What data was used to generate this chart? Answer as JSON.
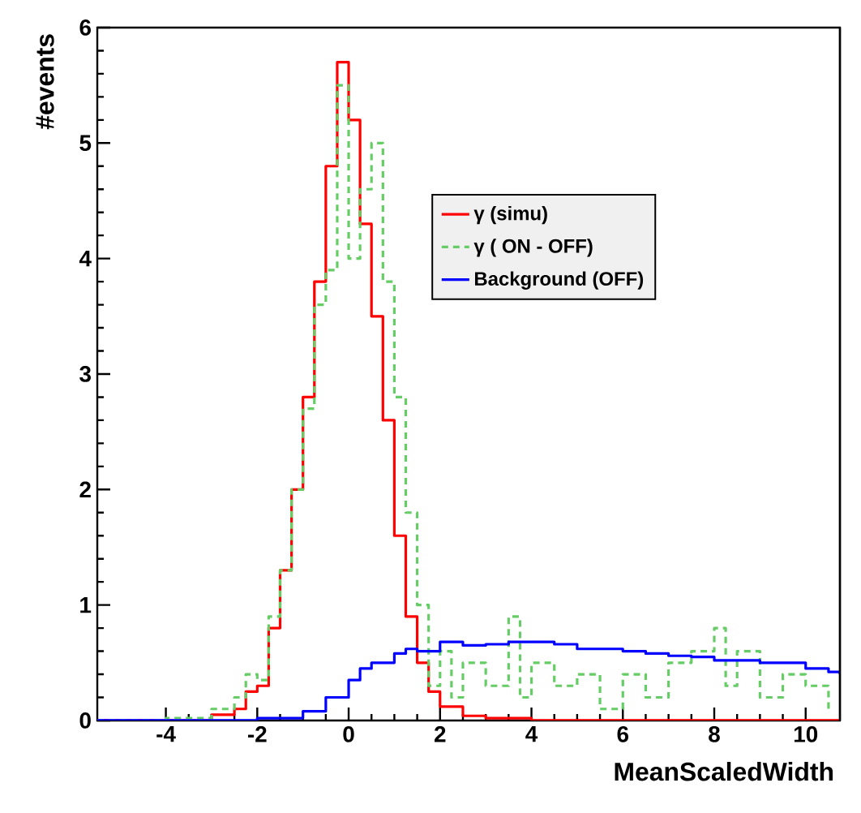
{
  "chart_data": {
    "type": "step",
    "xlabel": "MeanScaledWidth",
    "ylabel": "#events",
    "xlim": [
      -5.5,
      10.75
    ],
    "ylim": [
      0,
      6
    ],
    "xticks": [
      -4,
      -2,
      0,
      2,
      4,
      6,
      8,
      10
    ],
    "yticks": [
      0,
      1,
      2,
      3,
      4,
      5,
      6
    ],
    "grid": false,
    "legend": "right",
    "series": [
      {
        "name": "γ (simu)",
        "color": "#ff0000",
        "line_style": "solid",
        "x": [
          -5.5,
          -4,
          -3,
          -2.5,
          -2.25,
          -2,
          -1.75,
          -1.5,
          -1.25,
          -1,
          -0.75,
          -0.5,
          -0.25,
          0,
          0.25,
          0.5,
          0.75,
          1,
          1.25,
          1.5,
          1.75,
          2,
          2.5,
          3,
          4,
          10.75
        ],
        "values": [
          0,
          0,
          0.05,
          0.1,
          0.25,
          0.3,
          0.8,
          1.3,
          2.0,
          2.8,
          3.8,
          4.8,
          5.7,
          5.2,
          4.3,
          3.5,
          2.6,
          1.6,
          0.9,
          0.5,
          0.25,
          0.12,
          0.04,
          0.02,
          0,
          0
        ]
      },
      {
        "name": "γ ( ON - OFF)",
        "color": "#66cc66",
        "line_style": "dashed",
        "x": [
          -5.5,
          -4,
          -3,
          -2.5,
          -2.25,
          -2,
          -1.75,
          -1.5,
          -1.25,
          -1,
          -0.75,
          -0.5,
          -0.25,
          0,
          0.25,
          0.5,
          0.75,
          1,
          1.25,
          1.5,
          1.75,
          2,
          2.25,
          2.5,
          3,
          3.5,
          3.75,
          4,
          4.5,
          5,
          5.5,
          6,
          6.5,
          7,
          7.5,
          8,
          8.25,
          8.5,
          9,
          9.5,
          10,
          10.5
        ],
        "values": [
          0,
          0.02,
          0.1,
          0.2,
          0.4,
          0.35,
          0.9,
          1.3,
          2.0,
          2.7,
          3.6,
          3.9,
          5.5,
          4.0,
          4.6,
          5.0,
          3.8,
          2.8,
          1.8,
          1.0,
          0.3,
          0.6,
          0.2,
          0.5,
          0.3,
          0.9,
          0.2,
          0.5,
          0.3,
          0.4,
          0.1,
          0.4,
          0.2,
          0.5,
          0.6,
          0.8,
          0.3,
          0.6,
          0.2,
          0.4,
          0.3,
          0.1
        ]
      },
      {
        "name": "Background (OFF)",
        "color": "#0000ff",
        "line_style": "solid",
        "x": [
          -5.5,
          -3,
          -2,
          -1,
          -0.5,
          0,
          0.25,
          0.5,
          1,
          1.25,
          1.5,
          2,
          2.5,
          3,
          3.5,
          4,
          4.5,
          5,
          5.5,
          6,
          6.5,
          7,
          7.5,
          8,
          8.5,
          9,
          9.5,
          10,
          10.5,
          10.75
        ],
        "values": [
          0,
          0,
          0.02,
          0.08,
          0.2,
          0.35,
          0.45,
          0.5,
          0.58,
          0.62,
          0.6,
          0.68,
          0.65,
          0.66,
          0.68,
          0.68,
          0.66,
          0.62,
          0.62,
          0.6,
          0.58,
          0.56,
          0.55,
          0.52,
          0.52,
          0.5,
          0.5,
          0.45,
          0.42,
          0.4
        ]
      }
    ]
  }
}
